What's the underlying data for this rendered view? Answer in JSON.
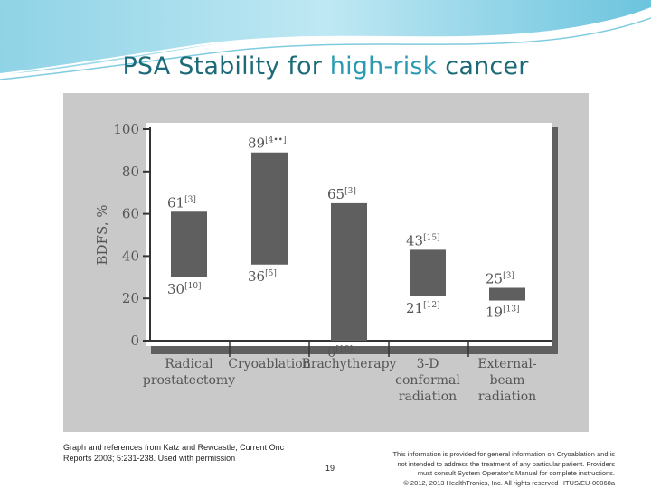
{
  "slide": {
    "title_prefix": "PSA Stability for ",
    "title_highlight": "high-risk",
    "title_suffix": " cancer",
    "caption": "Graph and references from Katz and Rewcastle, Current Onc Reports 2003; 5:231-238. Used with permission",
    "page_number": "19",
    "disclaimer": [
      "This information is provided for general information on Cryoablation and is",
      "not intended to address the treatment of any particular patient. Providers",
      "must consult System Operator's Manual for complete instructions.",
      "© 2012, 2013 HealthTronics, Inc. All rights reserved HTUS/EU-00068a"
    ],
    "colors": {
      "title": "#1d6a78",
      "title_highlight": "#2a9bb3",
      "bar": "#5f5f5f",
      "panel": "#c9c9c9"
    }
  },
  "chart_data": {
    "type": "bar",
    "subtype": "floating-range",
    "ylabel": "BDFS, %",
    "ylim": [
      0,
      100
    ],
    "yticks": [
      "0",
      "20",
      "40",
      "60",
      "80",
      "100"
    ],
    "grid": false,
    "categories": [
      [
        "Radical",
        "prostatectomy"
      ],
      [
        "Cryoablation"
      ],
      [
        "Brachytherapy"
      ],
      [
        "3-D",
        "conformal",
        "radiation"
      ],
      [
        "External-",
        "beam",
        "radiation"
      ]
    ],
    "ranges": [
      {
        "low": 30,
        "high": 61,
        "low_ref": "[10]",
        "high_ref": "[3]"
      },
      {
        "low": 36,
        "high": 89,
        "low_ref": "[5]",
        "high_ref": "[4••]"
      },
      {
        "low": 0,
        "high": 65,
        "low_ref": "[10]",
        "high_ref": "[3]"
      },
      {
        "low": 21,
        "high": 43,
        "low_ref": "[12]",
        "high_ref": "[15]"
      },
      {
        "low": 19,
        "high": 25,
        "low_ref": "[13]",
        "high_ref": "[3]"
      }
    ]
  }
}
